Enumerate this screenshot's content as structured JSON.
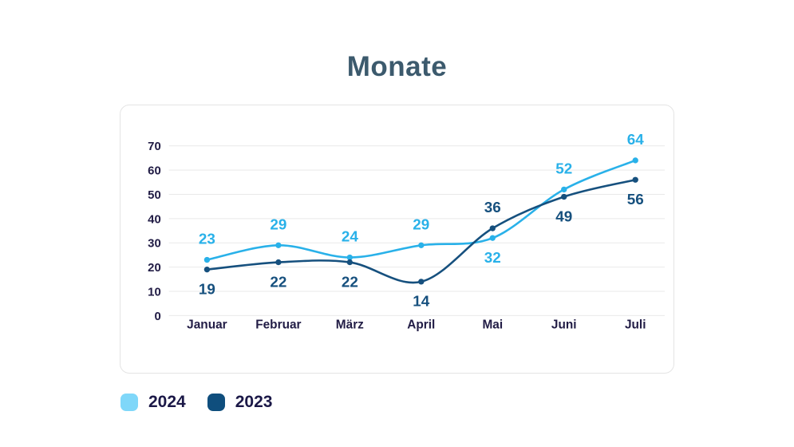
{
  "title": "Monate",
  "chart_data": {
    "type": "line",
    "title": "Monate",
    "categories": [
      "Januar",
      "Februar",
      "März",
      "April",
      "Mai",
      "Juni",
      "Juli"
    ],
    "series": [
      {
        "name": "2024",
        "values": [
          23,
          29,
          24,
          29,
          32,
          52,
          64
        ],
        "line_color": "#29B1E9",
        "label_color": "#29B1E9",
        "swatch_color": "#7FD7F9"
      },
      {
        "name": "2023",
        "values": [
          19,
          22,
          22,
          14,
          36,
          49,
          56
        ],
        "line_color": "#16507E",
        "label_color": "#16507E",
        "swatch_color": "#0F4E7D"
      }
    ],
    "y_ticks": [
      0,
      10,
      20,
      30,
      40,
      50,
      60,
      70
    ],
    "ylim": [
      0,
      70
    ],
    "grid": true,
    "grid_axis": "y",
    "legend_position": "bottom-left",
    "curve": "smooth",
    "point_markers": true,
    "data_labels": true
  },
  "colors": {
    "title": "#3C5A6D",
    "axis_text": "#211C45",
    "legend_text": "#1B1847",
    "gridline": "#E9E9E9",
    "card_border": "#E4E4E4",
    "background": "#FFFFFF"
  }
}
